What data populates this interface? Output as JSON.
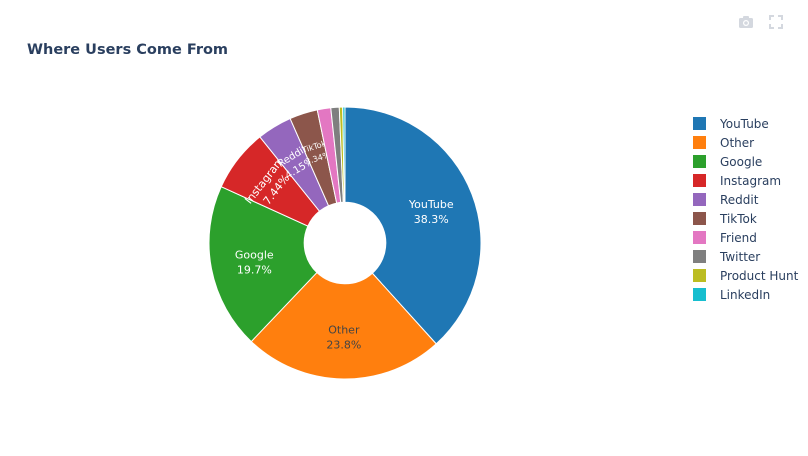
{
  "chart_data": {
    "type": "pie",
    "title": "Where Users Come From",
    "hole": 0.3,
    "legend_position": "right",
    "slices": [
      {
        "label": "YouTube",
        "value": 38.3,
        "percent_text": "38.3%",
        "color": "#1f77b4"
      },
      {
        "label": "Other",
        "value": 23.8,
        "percent_text": "23.8%",
        "color": "#ff7f0e"
      },
      {
        "label": "Google",
        "value": 19.7,
        "percent_text": "19.7%",
        "color": "#2ca02c"
      },
      {
        "label": "Instagram",
        "value": 7.44,
        "percent_text": "7.44%",
        "color": "#d62728"
      },
      {
        "label": "Reddit",
        "value": 4.15,
        "percent_text": "4.15%",
        "color": "#9467bd"
      },
      {
        "label": "TikTok",
        "value": 3.34,
        "percent_text": "3.34%",
        "color": "#8c564b"
      },
      {
        "label": "Friend",
        "value": 1.6,
        "percent_text": "",
        "color": "#e377c2"
      },
      {
        "label": "Twitter",
        "value": 1.0,
        "percent_text": "",
        "color": "#7f7f7f"
      },
      {
        "label": "Product Hunt",
        "value": 0.4,
        "percent_text": "",
        "color": "#bcbd22"
      },
      {
        "label": "LinkedIn",
        "value": 0.27,
        "percent_text": "",
        "color": "#17becf"
      }
    ]
  },
  "modebar": {
    "icons": [
      "camera-icon",
      "fullscreen-icon"
    ]
  }
}
